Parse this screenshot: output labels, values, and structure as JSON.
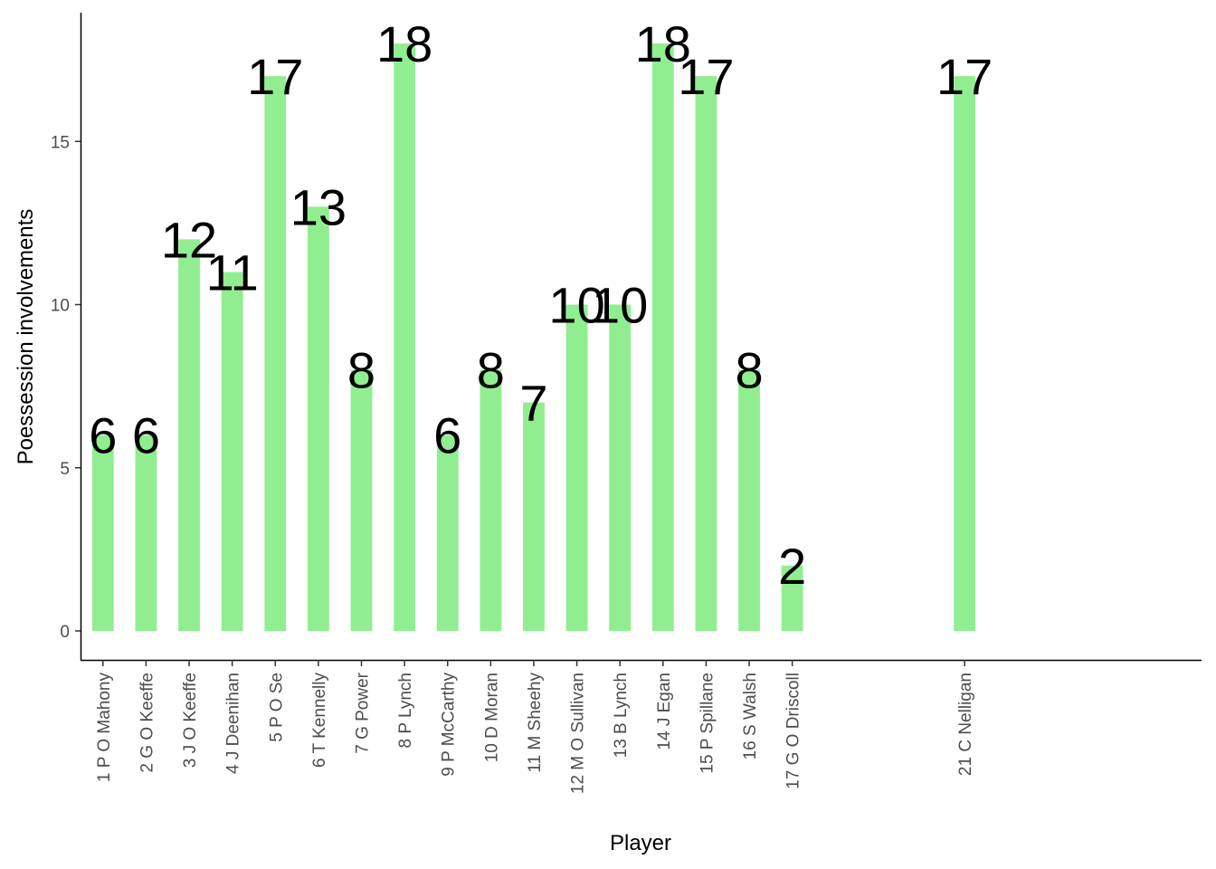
{
  "chart_data": {
    "type": "bar",
    "xlabel": "Player",
    "ylabel": "Poessession involvements",
    "ylim": [
      -0.9,
      19
    ],
    "yticks": [
      0,
      5,
      10,
      15
    ],
    "x_slots": 26,
    "bar_color": "#90ee90",
    "grid": false,
    "legend": "none",
    "categories": [
      "1 P O Mahony",
      "2 G O Keeffe",
      "3 J O Keeffe",
      "4 J Deenihan",
      "5 P O Se",
      "6 T Kennelly",
      "7 G Power",
      "8 P Lynch",
      "9 P McCarthy",
      "10 D Moran",
      "11 M Sheehy",
      "12 M O Sullivan",
      "13 B Lynch",
      "14 J Egan",
      "15 P Spillane",
      "16 S Walsh",
      "17 G O Driscoll",
      "21 C Nelligan"
    ],
    "positions": [
      1,
      2,
      3,
      4,
      5,
      6,
      7,
      8,
      9,
      10,
      11,
      12,
      13,
      14,
      15,
      16,
      17,
      21
    ],
    "values": [
      6,
      6,
      12,
      11,
      17,
      13,
      8,
      18,
      6,
      8,
      7,
      10,
      10,
      18,
      17,
      8,
      2,
      17
    ],
    "data_labels": [
      "6",
      "6",
      "12",
      "11",
      "17",
      "13",
      "8",
      "18",
      "6",
      "8",
      "7",
      "10",
      "10",
      "18",
      "17",
      "8",
      "2",
      "17"
    ]
  }
}
